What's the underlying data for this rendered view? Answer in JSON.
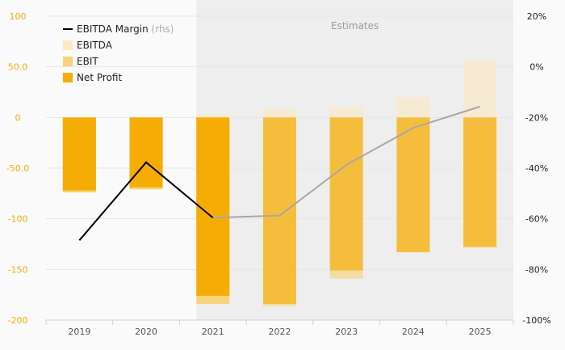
{
  "chart_data": {
    "type": "bar",
    "categories": [
      "2019",
      "2020",
      "2021",
      "2022",
      "2023",
      "2024",
      "2025"
    ],
    "estimates_from": "2021",
    "shaded_region_label": "Estimates",
    "ylim": [
      -200,
      100
    ],
    "y_ticks": [
      "100",
      "50.0",
      "0",
      "-50.0",
      "-100",
      "-150",
      "-200"
    ],
    "y2lim": [
      -100,
      20
    ],
    "y2_ticks": [
      "20%",
      "0%",
      "-20%",
      "-40%",
      "-60%",
      "-80%",
      "-100%"
    ],
    "legend_position": "top-left",
    "series": [
      {
        "name": "EBITDA",
        "kind": "bar",
        "color": "#fbe8c4",
        "values": [
          -72,
          -70,
          2,
          8,
          10,
          20,
          56
        ]
      },
      {
        "name": "EBIT",
        "kind": "bar",
        "color": "#f6d37c",
        "values": [
          -74,
          -71,
          -184,
          -186,
          -159,
          -133,
          -128
        ]
      },
      {
        "name": "Net Profit",
        "kind": "bar",
        "color": "#f5ad05",
        "values": [
          -72,
          -69,
          -176,
          -184,
          -151,
          -133,
          -128
        ]
      },
      {
        "name": "EBITDA Margin",
        "suffix": "(rhs)",
        "kind": "line",
        "axis": "right",
        "color": "#000000",
        "estimate_color": "#a9a7a3",
        "values": [
          -68.5,
          -37.7,
          -59.6,
          -58.7,
          -38.7,
          -24.1,
          -15.7
        ]
      }
    ]
  }
}
